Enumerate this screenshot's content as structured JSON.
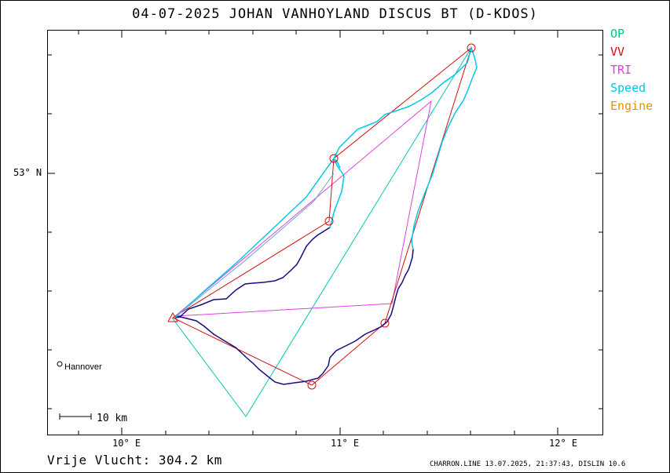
{
  "title": "04-07-2025   JOHAN VANHOYLAND   DISCUS BT (D-KDOS)",
  "legend": [
    {
      "label": "OP",
      "color": "#00c878"
    },
    {
      "label": "VV",
      "color": "#d01010"
    },
    {
      "label": "TRI",
      "color": "#e040e0"
    },
    {
      "label": "Speed",
      "color": "#00c8e8"
    },
    {
      "label": "Engine",
      "color": "#e89000"
    }
  ],
  "axes": {
    "lat_label": "53° N",
    "lon_labels": [
      "10° E",
      "11° E",
      "12° E"
    ]
  },
  "places": [
    {
      "name": "Hannover"
    }
  ],
  "scale_bar": {
    "label": "10  km"
  },
  "footer": {
    "distance_label": "Vrije Vlucht:  304.2 km",
    "credit": "CHARRON.LINE 13.07.2025, 21:37:43, DISLIN 10.6"
  },
  "colors": {
    "track_slow": "#1a0a80",
    "track_fast": "#00c8e8",
    "op": "#00c8b0",
    "vv": "#d01010",
    "tri": "#e040e0",
    "frame": "#000000"
  }
}
